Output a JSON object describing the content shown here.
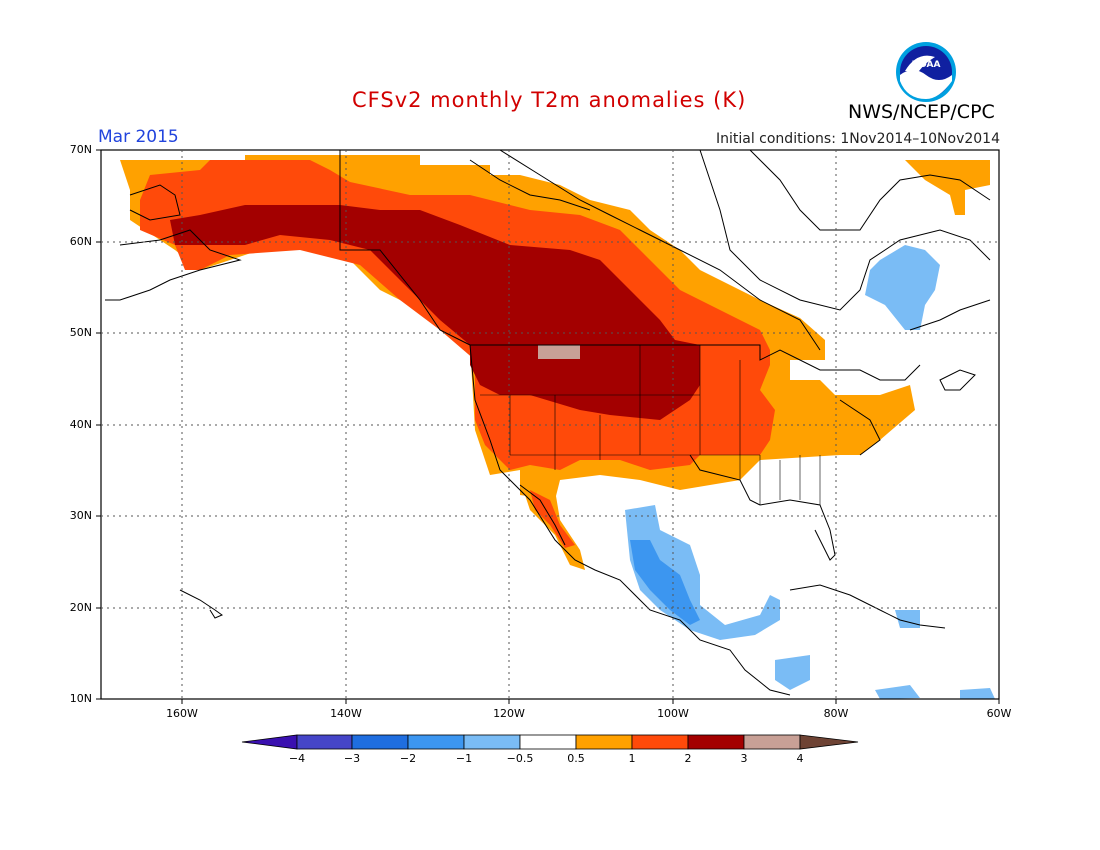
{
  "header": {
    "title": "CFSv2 monthly T2m anomalies (K)",
    "month": "Mar 2015",
    "initial_conditions": "Initial conditions: 1Nov2014–10Nov2014",
    "org": "NWS/NCEP/CPC",
    "logo_text": "NOAA"
  },
  "axes": {
    "lat_labels": [
      "70N",
      "60N",
      "50N",
      "40N",
      "30N",
      "20N",
      "10N"
    ],
    "lon_labels": [
      "160W",
      "140W",
      "120W",
      "100W",
      "80W",
      "60W"
    ],
    "lat_range": [
      10,
      70
    ],
    "lon_range": [
      -170,
      -60
    ]
  },
  "colorbar": {
    "labels": [
      "−4",
      "−3",
      "−2",
      "−1",
      "−0.5",
      "0.5",
      "1",
      "2",
      "3",
      "4"
    ],
    "colors": [
      "#3a10b0",
      "#4545c8",
      "#1f6ee0",
      "#3c96f0",
      "#7abcf5",
      "#ffffff",
      "#ffa100",
      "#ff4a0a",
      "#a30000",
      "#c8a096",
      "#6e4334"
    ]
  },
  "legend_meaning": {
    "brown_light": "3 to 4",
    "dark_red": "2 to 3",
    "red_orange": "1 to 2",
    "orange": "0.5 to 1",
    "white": "-0.5 to 0.5",
    "light_blue": "-1 to -0.5",
    "blue": "-2 to -1"
  }
}
